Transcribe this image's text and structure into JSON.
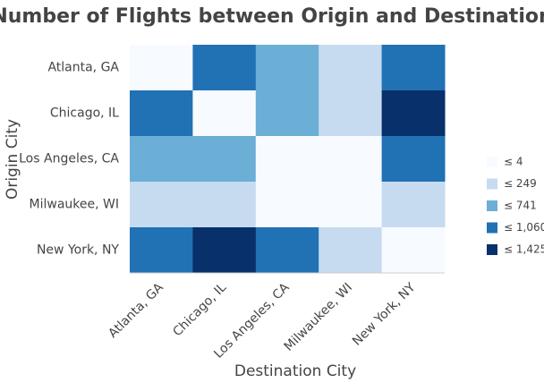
{
  "chart_data": {
    "type": "heatmap",
    "title": "Number of Flights between Origin and Destination",
    "x_label": "Destination City",
    "y_label": "Origin City",
    "x_categories": [
      "Atlanta, GA",
      "Chicago, IL",
      "Los Angeles, CA",
      "Milwaukee, WI",
      "New York, NY"
    ],
    "y_categories": [
      "Atlanta, GA",
      "Chicago, IL",
      "Los Angeles, CA",
      "Milwaukee, WI",
      "New York, NY"
    ],
    "values": [
      [
        0,
        900,
        500,
        150,
        900
      ],
      [
        900,
        0,
        500,
        150,
        1300
      ],
      [
        500,
        500,
        0,
        0,
        900
      ],
      [
        150,
        150,
        0,
        0,
        150
      ],
      [
        900,
        1300,
        900,
        150,
        0
      ]
    ],
    "color_scale": [
      {
        "value": 4,
        "label": "≤ 4",
        "color": "#f7fbff"
      },
      {
        "value": 249,
        "label": "≤ 249",
        "color": "#c6dbef"
      },
      {
        "value": 741,
        "label": "≤ 741",
        "color": "#6baed6"
      },
      {
        "value": 1060,
        "label": "≤ 1,060",
        "color": "#2171b5"
      },
      {
        "value": 1425,
        "label": "≤ 1,425",
        "color": "#08306b"
      }
    ]
  }
}
